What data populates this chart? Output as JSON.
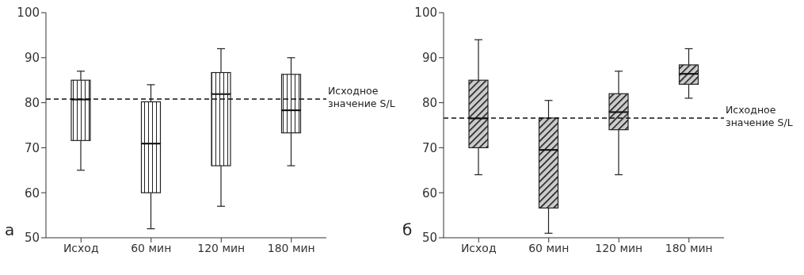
{
  "chart_data": [
    {
      "type": "box",
      "categories": [
        "Исход",
        "60 мин",
        "120 мин",
        "180 мин"
      ],
      "boxes": [
        {
          "low": 65,
          "q1": 71.6,
          "median": 80.8,
          "q3": 85,
          "high": 87
        },
        {
          "low": 52,
          "q1": 60,
          "median": 71,
          "q3": 80.2,
          "high": 84
        },
        {
          "low": 57,
          "q1": 66,
          "median": 82,
          "q3": 86.7,
          "high": 92
        },
        {
          "low": 66,
          "q1": 73.3,
          "median": 78.4,
          "q3": 86.3,
          "high": 90
        }
      ],
      "ylim": [
        50,
        100
      ],
      "yticks": [
        50,
        60,
        70,
        80,
        90,
        100
      ],
      "ref_lines": [
        {
          "axis": "y",
          "value": 80.8,
          "label": "Исходное значение S/L",
          "line_style": "dashed"
        }
      ],
      "annotations": [
        "а"
      ]
    },
    {
      "type": "box",
      "categories": [
        "Исход",
        "60 мин",
        "120 мин",
        "180 мин"
      ],
      "boxes": [
        {
          "low": 64,
          "q1": 70,
          "median": 76.6,
          "q3": 85,
          "high": 94
        },
        {
          "low": 51,
          "q1": 56.6,
          "median": 69.6,
          "q3": 76.6,
          "high": 80.5
        },
        {
          "low": 64,
          "q1": 74,
          "median": 78,
          "q3": 82,
          "high": 87
        },
        {
          "low": 81,
          "q1": 84.1,
          "median": 86.5,
          "q3": 88.4,
          "high": 92
        }
      ],
      "ylim": [
        50,
        100
      ],
      "yticks": [
        50,
        60,
        70,
        80,
        90,
        100
      ],
      "ref_lines": [
        {
          "axis": "y",
          "value": 76.6,
          "label": "Исходное значение S/L",
          "line_style": "dashed"
        }
      ],
      "annotations": [
        "б"
      ]
    }
  ]
}
